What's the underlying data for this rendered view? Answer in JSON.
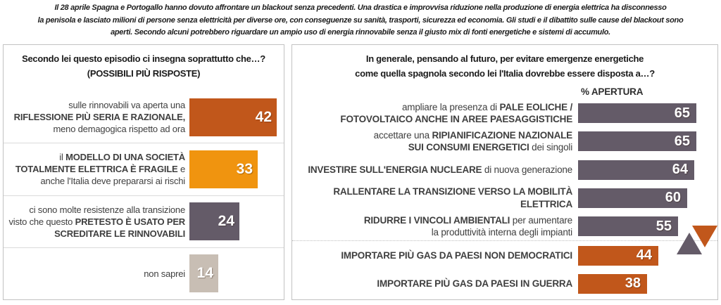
{
  "header": {
    "lines": [
      "Il 28 aprile Spagna e Portogallo hanno dovuto affrontare un blackout senza precedenti. Una drastica e improvvisa riduzione nella produzione di energia elettrica ha disconnesso",
      "la penisola e lasciato milioni di persone senza elettricità per diverse ore, con conseguenze su sanità, trasporti, sicurezza ed economia. Gli studi e il dibattito sulle cause del blackout sono",
      "aperti. Secondo alcuni potrebbero riguardare un ampio uso di energia rinnovabile senza il giusto mix di fonti energetiche e sistemi di accumulo."
    ]
  },
  "colors": {
    "dark_orange": "#c1571b",
    "bright_orange": "#f0940f",
    "purple_gray": "#645b68",
    "beige": "#c8beb4",
    "panel_border": "#c2c2c2",
    "value_text": "#ffffff",
    "label_text": "#3f3f3f"
  },
  "chart_data": [
    {
      "type": "bar",
      "orientation": "horizontal",
      "unit": "%",
      "xlim": [
        0,
        100
      ],
      "grid": false,
      "legend": "none",
      "title_lines": [
        "Secondo lei questo episodio ci insegna soprattutto che…?",
        "(POSSIBILI PIÙ RISPOSTE)"
      ],
      "categories": [
        "sulle rinnovabili va aperta una RIFLESSIONE PIÙ SERIA E RAZIONALE, meno demagogica rispetto ad ora",
        "il MODELLO DI UNA SOCIETÀ TOTALMENTE ELETTRICA È FRAGILE e anche l'Italia deve prepararsi ai rischi",
        "ci sono molte resistenze alla transizione visto che questo PRETESTO È USATO PER SCREDITARE LE RINNOVABILI",
        "non saprei"
      ],
      "values": [
        42,
        33,
        24,
        14
      ],
      "rows": [
        {
          "value": 42,
          "color": "#c1571b",
          "segments": [
            {
              "t": "sulle rinnovabili va aperta una\n",
              "b": false
            },
            {
              "t": "RIFLESSIONE PIÙ SERIA E RAZIONALE,\n",
              "b": true
            },
            {
              "t": "meno demagogica rispetto ad ora",
              "b": false
            }
          ]
        },
        {
          "value": 33,
          "color": "#f0940f",
          "segments": [
            {
              "t": "il ",
              "b": false
            },
            {
              "t": "MODELLO DI UNA SOCIETÀ\nTOTALMENTE ELETTRICA È FRAGILE",
              "b": true
            },
            {
              "t": " e\nanche l'Italia deve prepararsi ai rischi",
              "b": false
            }
          ]
        },
        {
          "value": 24,
          "color": "#645b68",
          "segments": [
            {
              "t": "ci sono molte resistenze alla transizione\nvisto che questo ",
              "b": false
            },
            {
              "t": "PRETESTO È USATO PER\nSCREDITARE LE RINNOVABILI",
              "b": true
            }
          ]
        },
        {
          "value": 14,
          "color": "#c8beb4",
          "segments": [
            {
              "t": "non saprei",
              "b": false
            }
          ]
        }
      ]
    },
    {
      "type": "bar",
      "orientation": "horizontal",
      "unit": "%",
      "xlim": [
        0,
        100
      ],
      "grid": false,
      "legend": "none",
      "title_lines": [
        "In generale, pensando al futuro, per evitare emergenze energetiche",
        "come quella spagnola secondo lei l'Italia dovrebbe essere disposta a…?"
      ],
      "value_axis_label": "% APERTURA",
      "categories": [
        "ampliare la presenza di PALE EOLICHE / FOTOVOLTAICO ANCHE IN AREE PAESAGGISTICHE",
        "accettare una RIPIANIFICAZIONE NAZIONALE SUI CONSUMI ENERGETICI dei singoli",
        "INVESTIRE SULL'ENERGIA NUCLEARE di nuova generazione",
        "RALLENTARE LA TRANSIZIONE VERSO LA MOBILITÀ ELETTRICA",
        "RIDURRE I VINCOLI AMBIENTALI per aumentare la produttività interna degli impianti",
        "IMPORTARE PIÙ GAS DA PAESI NON DEMOCRATICI",
        "IMPORTARE PIÙ GAS DA PAESI IN GUERRA"
      ],
      "values": [
        65,
        65,
        64,
        60,
        55,
        44,
        38
      ],
      "group_marker": {
        "up_color": "#645b68",
        "down_color": "#c1571b"
      },
      "rows": [
        {
          "value": 65,
          "color": "#645b68",
          "segments": [
            {
              "t": "ampliare la presenza di ",
              "b": false
            },
            {
              "t": "PALE EOLICHE /\nFOTOVOLTAICO ANCHE IN AREE PAESAGGISTICHE",
              "b": true
            }
          ]
        },
        {
          "value": 65,
          "color": "#645b68",
          "segments": [
            {
              "t": "accettare una ",
              "b": false
            },
            {
              "t": "RIPIANIFICAZIONE NAZIONALE\nSUI CONSUMI ENERGETICI",
              "b": true
            },
            {
              "t": " dei singoli",
              "b": false
            }
          ]
        },
        {
          "value": 64,
          "color": "#645b68",
          "segments": [
            {
              "t": "INVESTIRE SULL'ENERGIA NUCLEARE",
              "b": true
            },
            {
              "t": " di nuova generazione",
              "b": false
            }
          ]
        },
        {
          "value": 60,
          "color": "#645b68",
          "segments": [
            {
              "t": "RALLENTARE LA TRANSIZIONE VERSO LA MOBILITÀ ELETTRICA",
              "b": true
            }
          ]
        },
        {
          "value": 55,
          "color": "#645b68",
          "segments": [
            {
              "t": "RIDURRE I VINCOLI AMBIENTALI",
              "b": true
            },
            {
              "t": " per aumentare\nla produttività interna degli impianti",
              "b": false
            }
          ]
        },
        {
          "value": 44,
          "color": "#c1571b",
          "divider_before": true,
          "segments": [
            {
              "t": "IMPORTARE PIÙ GAS DA PAESI NON DEMOCRATICI",
              "b": true
            }
          ]
        },
        {
          "value": 38,
          "color": "#c1571b",
          "segments": [
            {
              "t": "IMPORTARE PIÙ GAS DA PAESI IN GUERRA",
              "b": true
            }
          ]
        }
      ]
    }
  ]
}
